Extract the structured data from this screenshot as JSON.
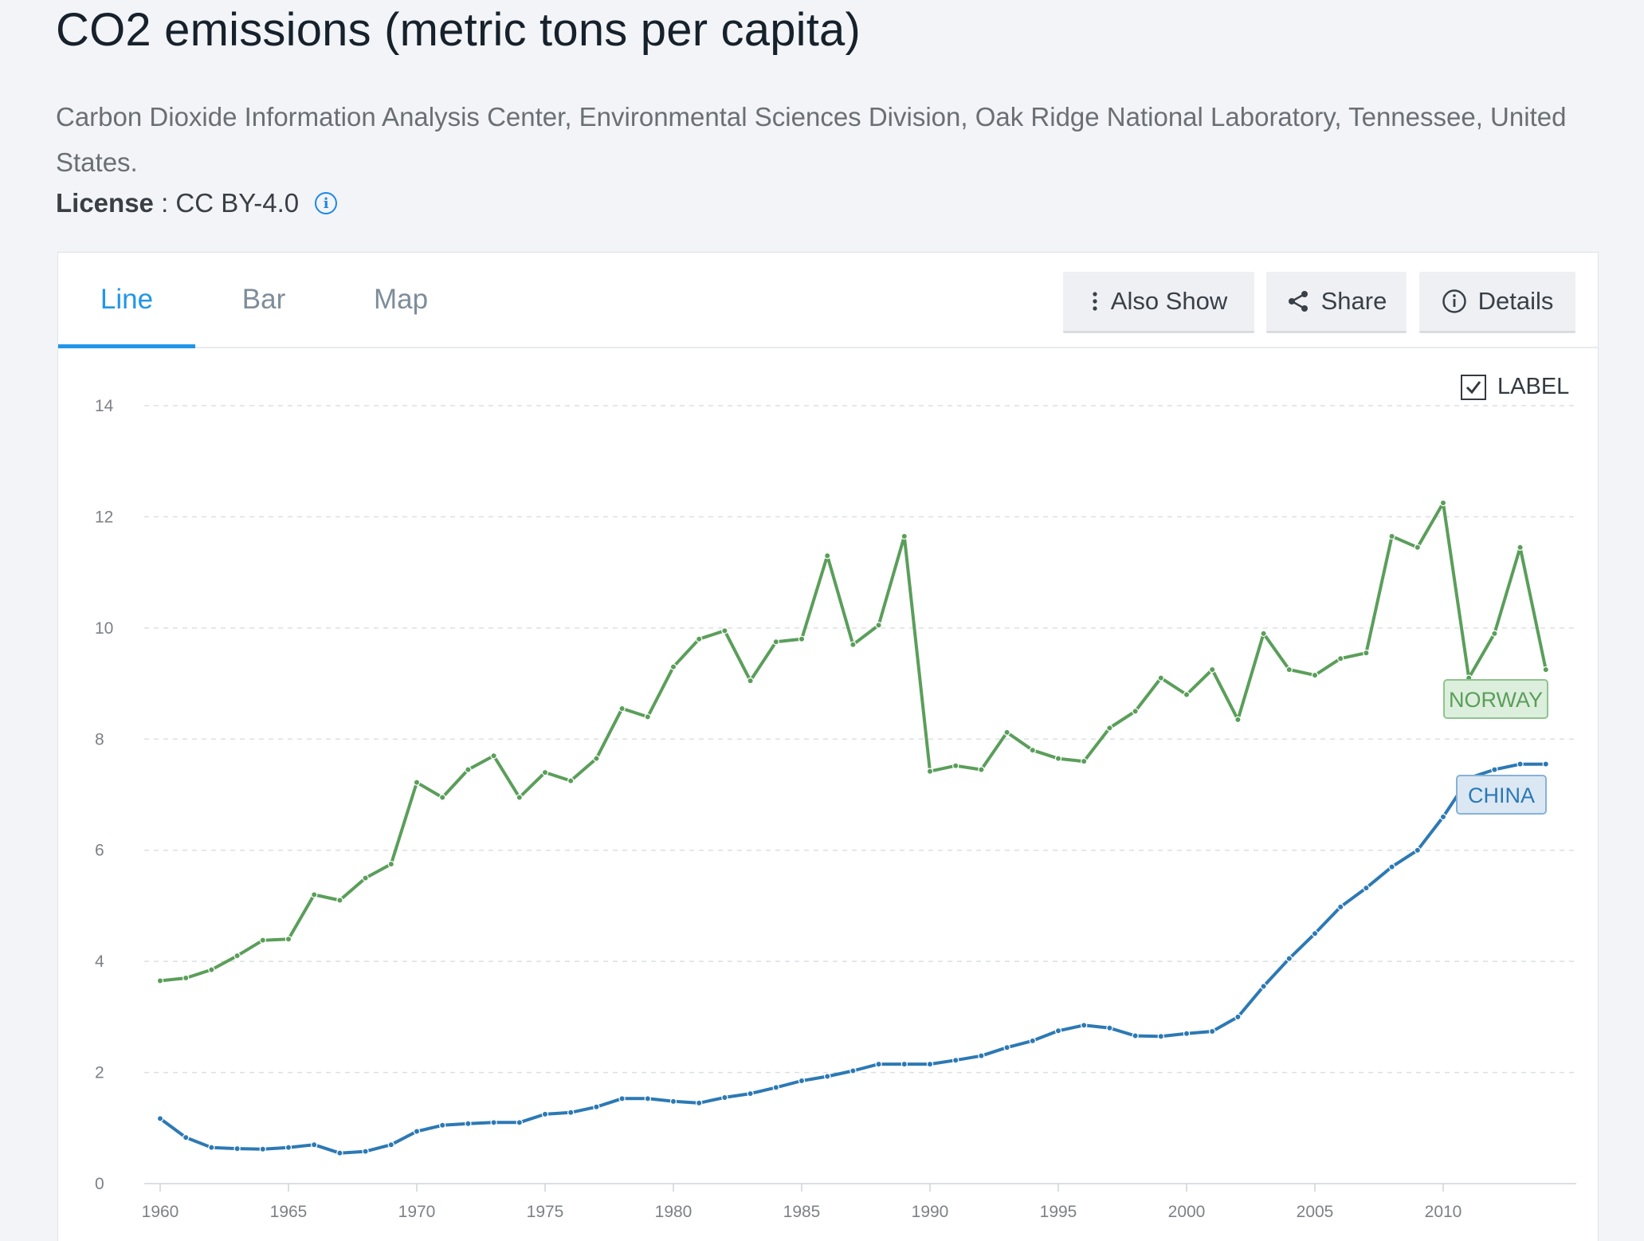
{
  "header": {
    "title": "CO2 emissions (metric tons per capita)",
    "source": "Carbon Dioxide Information Analysis Center, Environmental Sciences Division, Oak Ridge National Laboratory, Tennessee, United States.",
    "license_label": "License",
    "license_sep": " : ",
    "license_value": "CC BY-4.0"
  },
  "tabs": [
    {
      "label": "Line",
      "active": true
    },
    {
      "label": "Bar",
      "active": false
    },
    {
      "label": "Map",
      "active": false
    }
  ],
  "buttons": {
    "also_show": "Also Show",
    "share": "Share",
    "details": "Details"
  },
  "label_toggle": {
    "label": "LABEL",
    "checked": true
  },
  "colors": {
    "accent": "#2196e8",
    "norway": "#5a9e5a",
    "china": "#2c79b4"
  },
  "chart_data": {
    "type": "line",
    "title": "CO2 emissions (metric tons per capita)",
    "xlabel": "",
    "ylabel": "",
    "xlim": [
      1960,
      2015
    ],
    "ylim": [
      0,
      14
    ],
    "x_ticks": [
      1960,
      1965,
      1970,
      1975,
      1980,
      1985,
      1990,
      1995,
      2000,
      2005,
      2010
    ],
    "y_ticks": [
      0,
      2,
      4,
      6,
      8,
      10,
      12,
      14
    ],
    "grid": true,
    "x": [
      1960,
      1961,
      1962,
      1963,
      1964,
      1965,
      1966,
      1967,
      1968,
      1969,
      1970,
      1971,
      1972,
      1973,
      1974,
      1975,
      1976,
      1977,
      1978,
      1979,
      1980,
      1981,
      1982,
      1983,
      1984,
      1985,
      1986,
      1987,
      1988,
      1989,
      1990,
      1991,
      1992,
      1993,
      1994,
      1995,
      1996,
      1997,
      1998,
      1999,
      2000,
      2001,
      2002,
      2003,
      2004,
      2005,
      2006,
      2007,
      2008,
      2009,
      2010,
      2011,
      2012,
      2013,
      2014
    ],
    "series": [
      {
        "name": "NORWAY",
        "color": "#5a9e5a",
        "values": [
          3.65,
          3.7,
          3.85,
          4.1,
          4.38,
          4.4,
          5.2,
          5.1,
          5.5,
          5.75,
          7.22,
          6.95,
          7.45,
          7.7,
          6.95,
          7.4,
          7.25,
          7.65,
          8.55,
          8.4,
          9.3,
          9.8,
          9.95,
          9.05,
          9.75,
          9.8,
          11.3,
          9.7,
          10.05,
          11.65,
          7.42,
          7.52,
          7.45,
          8.12,
          7.8,
          7.65,
          7.6,
          8.2,
          8.5,
          9.1,
          8.8,
          9.25,
          8.35,
          9.9,
          9.25,
          9.15,
          9.45,
          9.55,
          11.65,
          11.45,
          12.25,
          9.1,
          9.9,
          11.45,
          9.25
        ]
      },
      {
        "name": "CHINA",
        "color": "#2c79b4",
        "values": [
          1.17,
          0.83,
          0.65,
          0.63,
          0.62,
          0.65,
          0.7,
          0.55,
          0.58,
          0.7,
          0.94,
          1.05,
          1.08,
          1.1,
          1.1,
          1.25,
          1.28,
          1.38,
          1.53,
          1.53,
          1.48,
          1.45,
          1.55,
          1.62,
          1.73,
          1.85,
          1.93,
          2.03,
          2.15,
          2.15,
          2.15,
          2.22,
          2.3,
          2.45,
          2.57,
          2.75,
          2.85,
          2.8,
          2.66,
          2.65,
          2.7,
          2.74,
          3.0,
          3.55,
          4.05,
          4.5,
          4.98,
          5.32,
          5.7,
          6.0,
          6.6,
          7.3,
          7.45,
          7.55,
          7.55
        ]
      }
    ]
  }
}
